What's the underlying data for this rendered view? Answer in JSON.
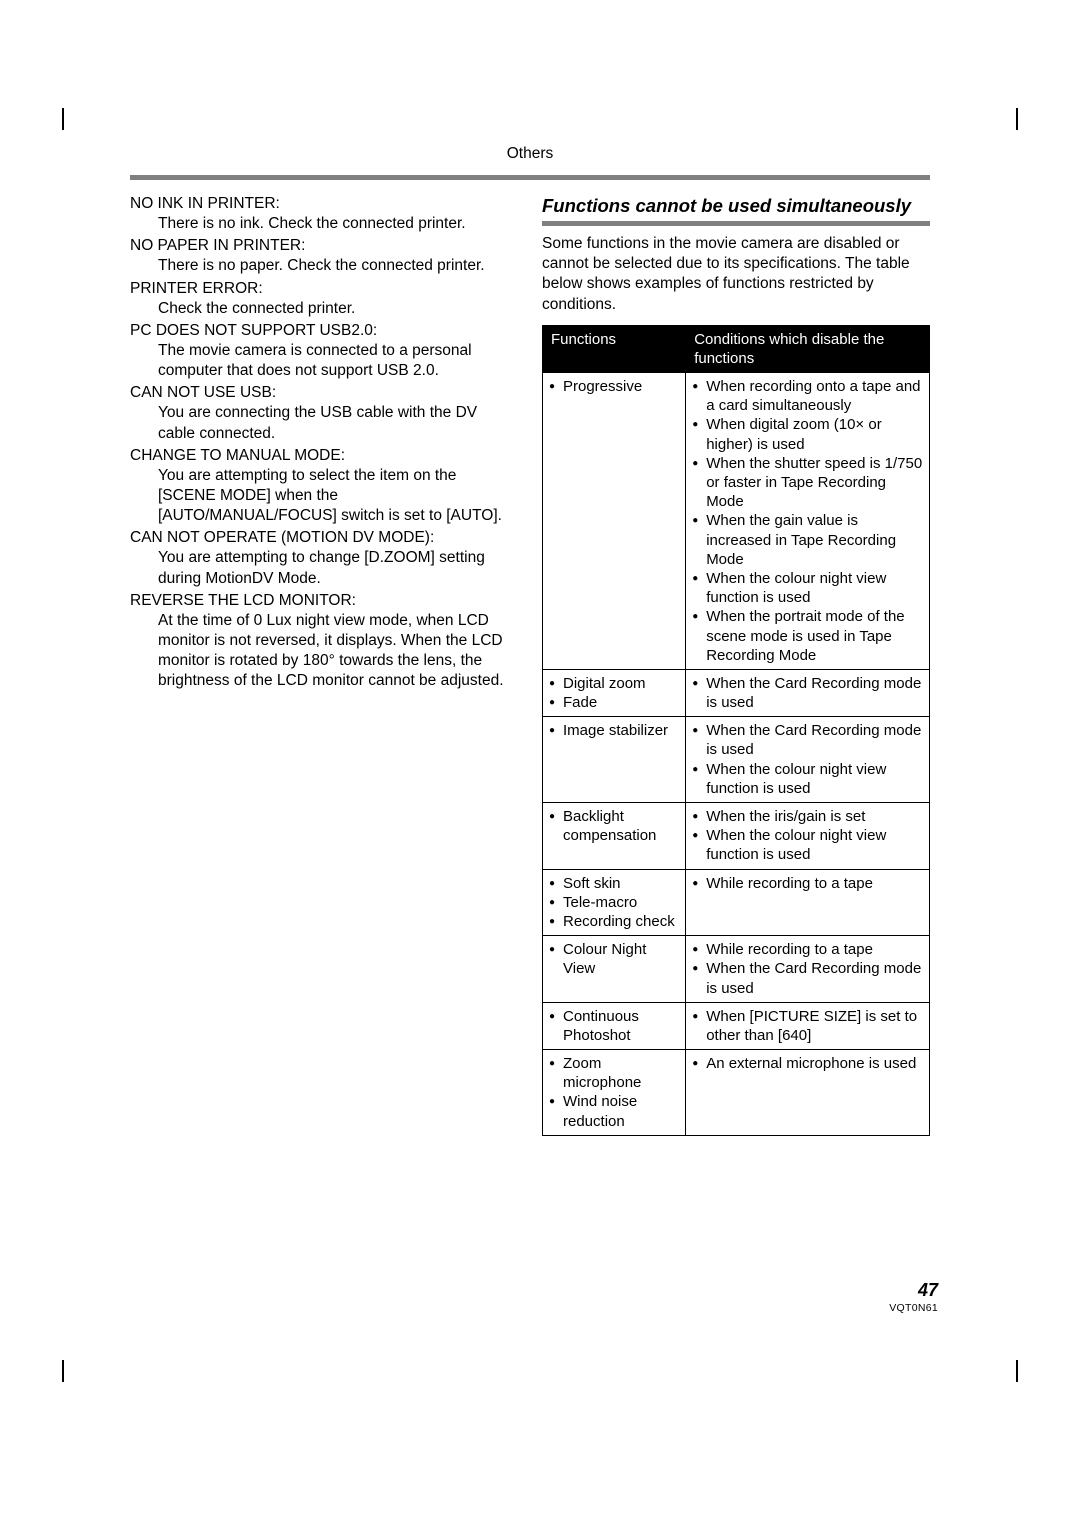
{
  "section_label": "Others",
  "page_number": "47",
  "doc_code": "VQT0N61",
  "left_messages": [
    {
      "title": "NO INK IN PRINTER:",
      "desc": "There is no ink. Check the connected printer."
    },
    {
      "title": "NO PAPER IN PRINTER:",
      "desc": "There is no paper. Check the connected printer."
    },
    {
      "title": "PRINTER ERROR:",
      "desc": "Check the connected printer."
    },
    {
      "title": "PC DOES NOT SUPPORT USB2.0:",
      "desc": "The movie camera is connected to a personal computer that does not support USB 2.0."
    },
    {
      "title": "CAN NOT USE USB:",
      "desc": "You are connecting the USB cable with the DV cable connected."
    },
    {
      "title": "CHANGE TO MANUAL MODE:",
      "desc": "You are attempting to select the item on the [SCENE MODE] when the [AUTO/MANUAL/FOCUS] switch is set to [AUTO]."
    },
    {
      "title": "CAN NOT OPERATE (MOTION DV MODE):",
      "desc": "You are attempting to change [D.ZOOM] setting during MotionDV Mode."
    },
    {
      "title": "REVERSE THE LCD MONITOR:",
      "desc": "At the time of 0 Lux night view mode, when LCD monitor is not reversed, it displays. When the LCD monitor is rotated by 180° towards the lens, the brightness of the LCD monitor cannot be adjusted."
    }
  ],
  "right": {
    "heading": "Functions cannot be used simultaneously",
    "intro": "Some functions in the movie camera are disabled or cannot be selected due to its specifications. The table below shows examples of functions restricted by conditions.",
    "header_functions": "Functions",
    "header_conditions": "Conditions which disable the functions",
    "rows": [
      {
        "functions": [
          "Progressive"
        ],
        "conditions": [
          "When recording onto a tape and a card simultaneously",
          "When digital zoom (10× or higher) is used",
          "When the shutter speed is 1/750 or faster in Tape Recording Mode",
          "When the gain value is increased in Tape Recording Mode",
          "When the colour night view function is used",
          "When the portrait mode of the scene mode is used in Tape Recording Mode"
        ]
      },
      {
        "functions": [
          "Digital zoom",
          "Fade"
        ],
        "conditions": [
          "When the Card Recording mode is used"
        ]
      },
      {
        "functions": [
          "Image stabilizer"
        ],
        "conditions": [
          "When the Card Recording mode is used",
          "When the colour night view function is used"
        ]
      },
      {
        "functions": [
          "Backlight compensation"
        ],
        "conditions": [
          "When the iris/gain is set",
          "When the colour night view function is used"
        ]
      },
      {
        "functions": [
          "Soft skin",
          "Tele-macro",
          "Recording check"
        ],
        "conditions": [
          "While recording to a tape"
        ]
      },
      {
        "functions": [
          "Colour Night View"
        ],
        "conditions": [
          "While recording to a tape",
          "When the Card Recording mode is used"
        ]
      },
      {
        "functions": [
          "Continuous Photoshot"
        ],
        "conditions": [
          "When [PICTURE SIZE] is set to other than [640]"
        ]
      },
      {
        "functions": [
          "Zoom microphone",
          "Wind noise reduction"
        ],
        "conditions": [
          "An external microphone is used"
        ]
      }
    ]
  }
}
